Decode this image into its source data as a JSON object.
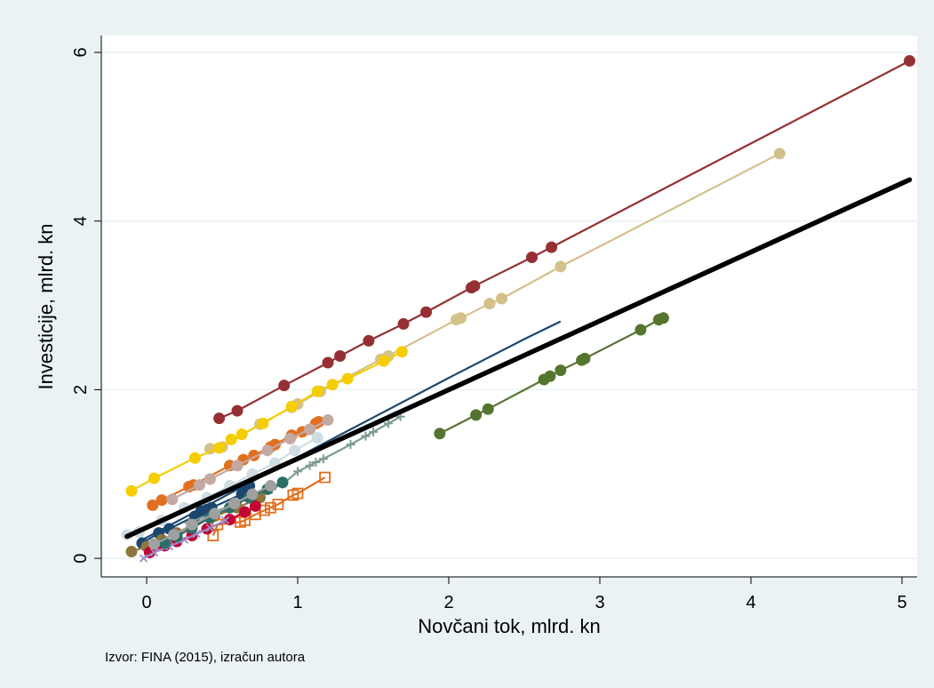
{
  "chart_data": {
    "type": "scatter",
    "xlabel": "Novčani tok, mlrd. kn",
    "ylabel": "Investicije, mlrd. kn",
    "xlim": [
      -0.3,
      5.1
    ],
    "ylim": [
      -0.22,
      6.2
    ],
    "x_ticks": [
      0,
      1,
      2,
      3,
      4,
      5
    ],
    "y_ticks": [
      0,
      2,
      4,
      6
    ],
    "x_tick_labels": [
      "0",
      "1",
      "2",
      "3",
      "4",
      "5"
    ],
    "y_tick_labels": [
      "0",
      "2",
      "4",
      "6"
    ],
    "grid": "horizontal",
    "legend": "none",
    "note": "Izvor: FINA (2015), izračun autora",
    "fit_line": {
      "color": "#000000",
      "x": [
        -0.13,
        5.05
      ],
      "y": [
        0.26,
        4.49
      ]
    },
    "series": [
      {
        "color": "#943034",
        "marker": "circle",
        "x": [
          0.48,
          0.6,
          0.91,
          1.2,
          1.28,
          1.47,
          1.7,
          1.85,
          2.15,
          2.17,
          2.55,
          2.68,
          5.05
        ],
        "y": [
          1.66,
          1.75,
          2.05,
          2.32,
          2.4,
          2.58,
          2.78,
          2.92,
          3.21,
          3.23,
          3.57,
          3.69,
          5.9
        ]
      },
      {
        "color": "#d3c18a",
        "marker": "circle",
        "x": [
          0.42,
          0.5,
          0.75,
          0.96,
          1.0,
          1.15,
          1.55,
          1.6,
          2.05,
          2.08,
          2.27,
          2.35,
          2.74,
          4.19
        ],
        "y": [
          1.3,
          1.32,
          1.59,
          1.79,
          1.83,
          1.98,
          2.36,
          2.4,
          2.83,
          2.85,
          3.02,
          3.08,
          3.46,
          4.8
        ]
      },
      {
        "color": "#f5cd00",
        "marker": "circle",
        "x": [
          -0.1,
          0.05,
          0.32,
          0.48,
          0.56,
          0.63,
          0.77,
          0.96,
          1.13,
          1.23,
          1.33,
          1.57,
          1.69
        ],
        "y": [
          0.8,
          0.95,
          1.19,
          1.31,
          1.41,
          1.47,
          1.6,
          1.8,
          1.98,
          2.06,
          2.13,
          2.34,
          2.45
        ]
      },
      {
        "color": "#e26f1f",
        "marker": "circle",
        "x": [
          0.04,
          0.1,
          0.28,
          0.31,
          0.55,
          0.64,
          0.71,
          0.82,
          0.85,
          0.96,
          1.03,
          1.12,
          1.14
        ],
        "y": [
          0.63,
          0.69,
          0.85,
          0.87,
          1.1,
          1.17,
          1.22,
          1.32,
          1.35,
          1.46,
          1.5,
          1.6,
          1.62
        ]
      },
      {
        "color": "#c4a8a4",
        "marker": "circle",
        "x": [
          0.17,
          0.35,
          0.42,
          0.6,
          0.8,
          0.95,
          1.08,
          1.2
        ],
        "y": [
          0.7,
          0.87,
          0.94,
          1.1,
          1.28,
          1.42,
          1.53,
          1.64
        ]
      },
      {
        "color": "#cfdde3",
        "marker": "circle",
        "x": [
          -0.13,
          -0.05,
          0.1,
          0.25,
          0.4,
          0.55,
          0.7,
          0.85,
          0.98,
          1.13
        ],
        "y": [
          0.28,
          0.31,
          0.45,
          0.6,
          0.72,
          0.86,
          1.0,
          1.13,
          1.28,
          1.43
        ]
      },
      {
        "color": "#1a476f",
        "marker": "circle",
        "x": [
          -0.03,
          0.08,
          0.15,
          0.32,
          0.36,
          0.4,
          0.43,
          0.63,
          0.65,
          0.68
        ],
        "y": [
          0.18,
          0.3,
          0.35,
          0.5,
          0.56,
          0.58,
          0.6,
          0.76,
          0.84,
          0.86
        ]
      },
      {
        "color": "#1a476f",
        "marker": "none",
        "x": [
          -0.05,
          0.5,
          1.0,
          1.5,
          2.0,
          2.5,
          2.74
        ],
        "y": [
          0.2,
          0.72,
          1.2,
          1.67,
          2.14,
          2.6,
          2.81
        ]
      },
      {
        "color": "#55752f",
        "marker": "circle",
        "x": [
          1.94,
          2.18,
          2.26,
          2.63,
          2.67,
          2.74,
          2.88,
          2.9,
          3.27,
          3.39,
          3.42
        ],
        "y": [
          1.48,
          1.7,
          1.77,
          2.12,
          2.16,
          2.23,
          2.35,
          2.37,
          2.71,
          2.83,
          2.85
        ]
      },
      {
        "color": "#7f9c93",
        "marker": "plus",
        "x": [
          0.28,
          0.45,
          0.6,
          0.72,
          0.83,
          0.9,
          1.0,
          1.08,
          1.12,
          1.17,
          1.35,
          1.45,
          1.5,
          1.6,
          1.68
        ],
        "y": [
          0.42,
          0.55,
          0.66,
          0.74,
          0.82,
          0.88,
          1.03,
          1.1,
          1.14,
          1.18,
          1.35,
          1.45,
          1.5,
          1.6,
          1.68
        ]
      },
      {
        "color": "#90763c",
        "marker": "circle",
        "x": [
          -0.1,
          0.0,
          0.1,
          0.2,
          0.3,
          0.45,
          0.6,
          0.75
        ],
        "y": [
          0.08,
          0.14,
          0.22,
          0.3,
          0.38,
          0.5,
          0.6,
          0.72
        ]
      },
      {
        "color": "#e26f1f",
        "marker": "square",
        "x": [
          0.44,
          0.47,
          0.62,
          0.65,
          0.72,
          0.78,
          0.82,
          0.87,
          0.97,
          1.0,
          1.18
        ],
        "y": [
          0.27,
          0.4,
          0.43,
          0.45,
          0.52,
          0.57,
          0.6,
          0.64,
          0.75,
          0.77,
          0.96
        ]
      },
      {
        "color": "#c10534",
        "marker": "circle",
        "x": [
          0.02,
          0.12,
          0.2,
          0.3,
          0.4,
          0.55,
          0.65,
          0.72
        ],
        "y": [
          0.07,
          0.15,
          0.2,
          0.27,
          0.35,
          0.46,
          0.55,
          0.62
        ]
      },
      {
        "color": "#9b8dc6",
        "marker": "x",
        "x": [
          -0.02,
          0.05,
          0.15,
          0.25,
          0.33,
          0.42,
          0.52
        ],
        "y": [
          0.0,
          0.07,
          0.14,
          0.22,
          0.29,
          0.36,
          0.45
        ]
      },
      {
        "color": "#2d6d66",
        "marker": "circle",
        "x": [
          0.12,
          0.2,
          0.3,
          0.42,
          0.55,
          0.68,
          0.8,
          0.9
        ],
        "y": [
          0.18,
          0.26,
          0.36,
          0.48,
          0.6,
          0.72,
          0.82,
          0.9
        ]
      },
      {
        "color": "#a0a0a0",
        "marker": "circle",
        "x": [
          0.05,
          0.18,
          0.3,
          0.45,
          0.58,
          0.7,
          0.82
        ],
        "y": [
          0.17,
          0.28,
          0.4,
          0.53,
          0.65,
          0.76,
          0.86
        ]
      }
    ]
  }
}
